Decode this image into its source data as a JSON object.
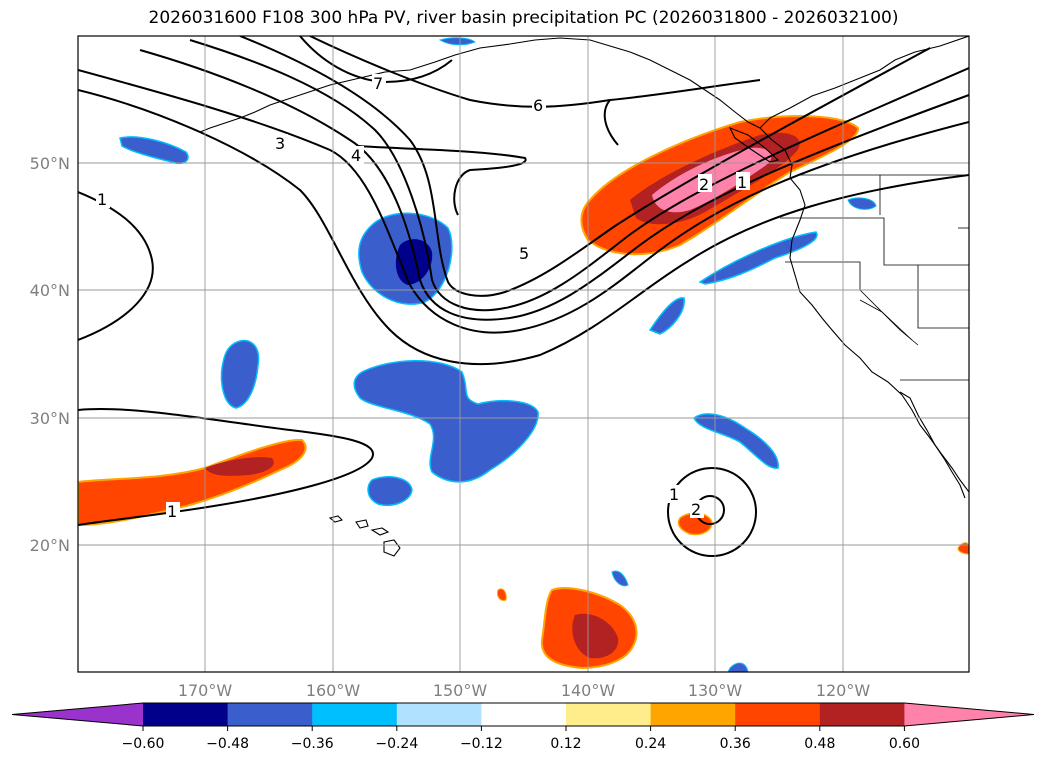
{
  "title": "2026031600 F108 300 hPa PV, river basin precipitation PC (2026031800 - 2026032100)",
  "lat_labels": [
    "50°N",
    "40°N",
    "30°N",
    "20°N"
  ],
  "lon_labels": [
    "170°W",
    "160°W",
    "150°W",
    "140°W",
    "130°W",
    "120°W"
  ],
  "colorbar": {
    "colors": [
      "#9933cc",
      "#00008b",
      "#3a5fcd",
      "#00bfff",
      "#b0e2ff",
      "#ffffff",
      "#ffec8b",
      "#ffa500",
      "#ff4500",
      "#b22222",
      "#ff82ab"
    ],
    "tick_labels": [
      "−0.60",
      "−0.48",
      "−0.36",
      "−0.24",
      "−0.12",
      "0.12",
      "0.24",
      "0.36",
      "0.48",
      "0.60"
    ]
  },
  "pv_contour_labels": [
    "1",
    "1",
    "1",
    "1",
    "2",
    "2",
    "3",
    "4",
    "5",
    "6",
    "7"
  ]
}
